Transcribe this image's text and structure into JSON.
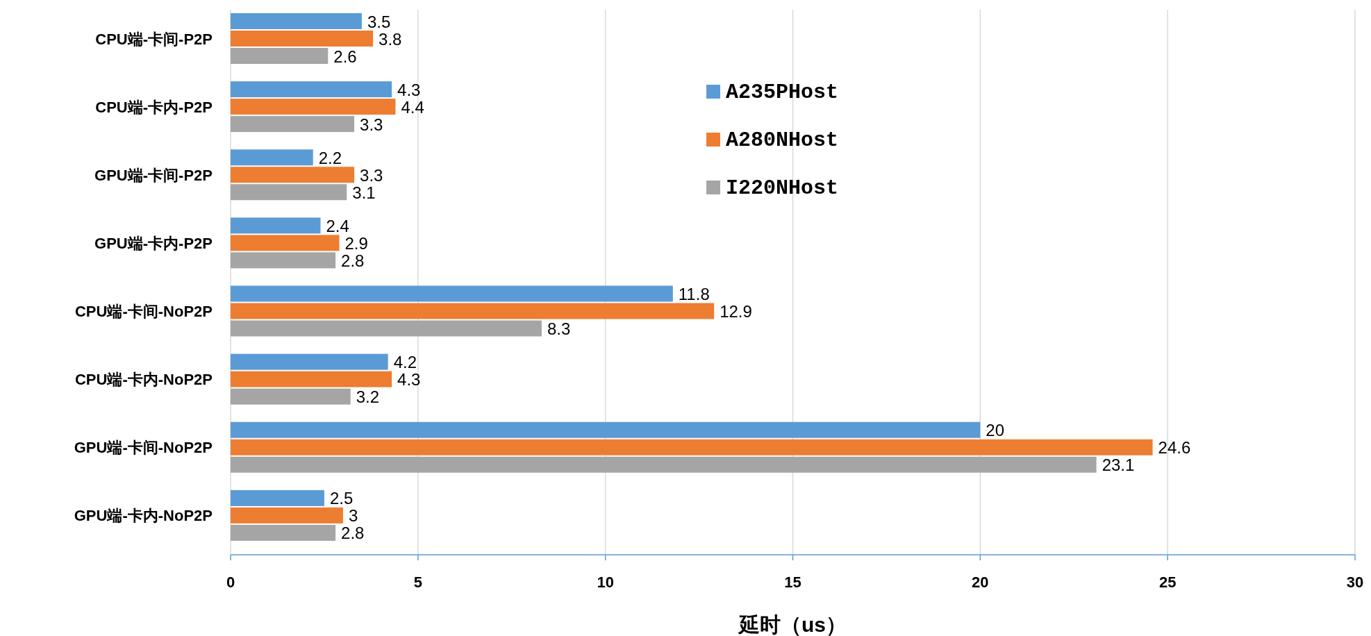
{
  "chart_data": {
    "type": "bar",
    "orientation": "horizontal",
    "categories": [
      "CPU端-卡间-P2P",
      "CPU端-卡内-P2P",
      "GPU端-卡间-P2P",
      "GPU端-卡内-P2P",
      "CPU端-卡间-NoP2P",
      "CPU端-卡内-NoP2P",
      "GPU端-卡间-NoP2P",
      "GPU端-卡内-NoP2P"
    ],
    "series": [
      {
        "name": "A235PHost",
        "color": "#5b9bd5",
        "values": [
          3.5,
          4.3,
          2.2,
          2.4,
          11.8,
          4.2,
          20,
          2.5
        ]
      },
      {
        "name": "A280NHost",
        "color": "#ed7d31",
        "values": [
          3.8,
          4.4,
          3.3,
          2.9,
          12.9,
          4.3,
          24.6,
          3
        ]
      },
      {
        "name": "I220NHost",
        "color": "#a5a5a5",
        "values": [
          2.6,
          3.3,
          3.1,
          2.8,
          8.3,
          3.2,
          23.1,
          2.8
        ]
      }
    ],
    "xlabel": "延时（us）",
    "xlim": [
      0,
      30
    ],
    "xticks": [
      0,
      5,
      10,
      15,
      20,
      25,
      30
    ],
    "grid": "x",
    "legend": "top",
    "data_labels": true
  }
}
